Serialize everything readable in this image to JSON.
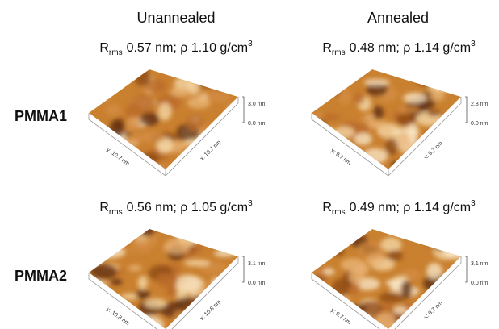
{
  "columns": [
    "Unannealed",
    "Annealed"
  ],
  "rows": [
    "PMMA1",
    "PMMA2"
  ],
  "panels": [
    {
      "rms": {
        "symbol": "R",
        "subscript": "rms",
        "text": "0.57 nm; ρ 1.10 g/cm",
        "superscript": "3"
      },
      "z_max": "3.0 nm",
      "z_min": "0.0 nm",
      "x_label": "x: 10.7 nm",
      "y_label": "y: 10.7 nm"
    },
    {
      "rms": {
        "symbol": "R",
        "subscript": "rms",
        "text": "0.48 nm; ρ 1.14 g/cm",
        "superscript": "3"
      },
      "z_max": "2.8 nm",
      "z_min": "0.0 nm",
      "x_label": "x: 9.7 nm",
      "y_label": "y: 9.7 nm"
    },
    {
      "rms": {
        "symbol": "R",
        "subscript": "rms",
        "text": "0.56 nm; ρ 1.05 g/cm",
        "superscript": "3"
      },
      "z_max": "3.1 nm",
      "z_min": "0.0 nm",
      "x_label": "x: 10.8 nm",
      "y_label": "y: 10.8 nm"
    },
    {
      "rms": {
        "symbol": "R",
        "subscript": "rms",
        "text": "0.49 nm; ρ 1.14 g/cm",
        "superscript": "3"
      },
      "z_max": "3.1 nm",
      "z_min": "0.0 nm",
      "x_label": "x: 9.7 nm",
      "y_label": "y: 9.7 nm"
    }
  ]
}
